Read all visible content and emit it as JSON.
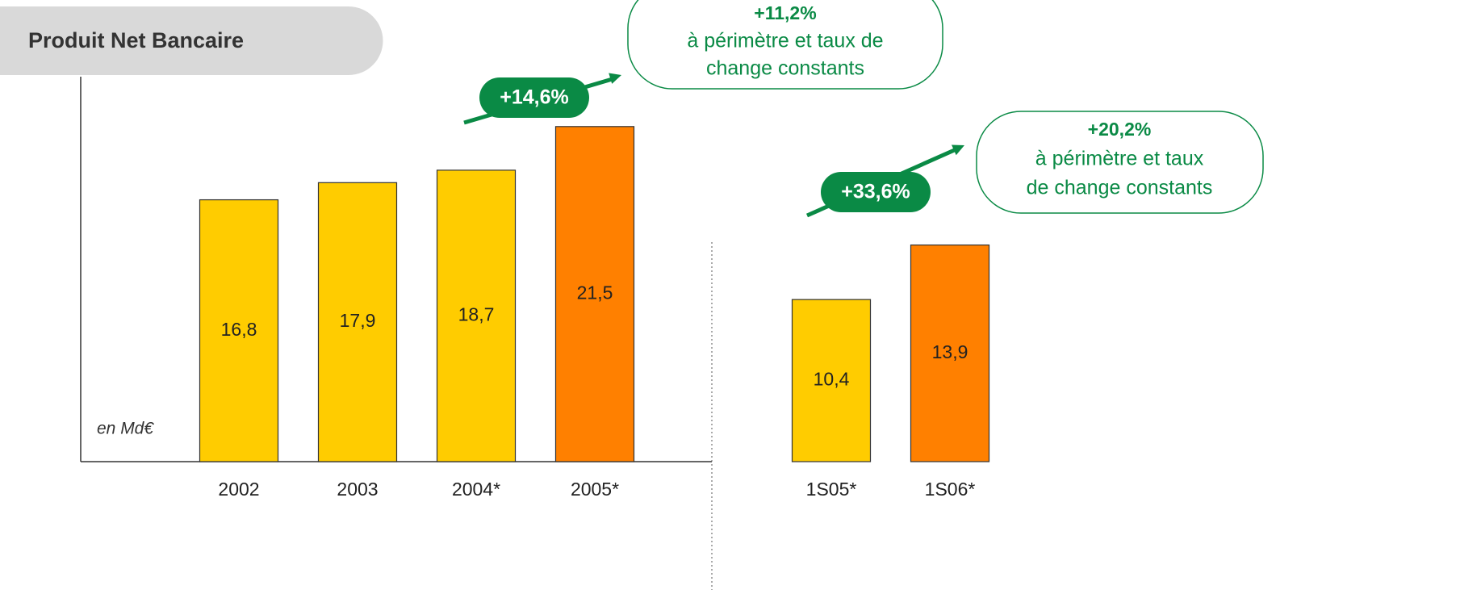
{
  "chart_data": {
    "type": "bar",
    "title": "Produit Net Bancaire",
    "unit_label": "en Md€",
    "categories": [
      "2002",
      "2003",
      "2004*",
      "2005*",
      "1S05*",
      "1S06*"
    ],
    "values": [
      16.8,
      17.9,
      18.7,
      21.5,
      10.4,
      13.9
    ],
    "value_labels": [
      "16,8",
      "17,9",
      "18,7",
      "21,5",
      "10,4",
      "13,9"
    ],
    "colors": [
      "#ffcc00",
      "#ffcc00",
      "#ffcc00",
      "#ff8000",
      "#ffcc00",
      "#ff8000"
    ],
    "ylim": [
      0,
      24.7
    ],
    "growth_labels": [
      "+14,6%",
      "+33,6%"
    ],
    "callouts": [
      {
        "title": "+11,2%",
        "lines": [
          "à périmètre et taux de",
          "change constants"
        ]
      },
      {
        "title": "+20,2%",
        "lines": [
          "à périmètre et taux",
          "de change constants"
        ]
      }
    ]
  }
}
